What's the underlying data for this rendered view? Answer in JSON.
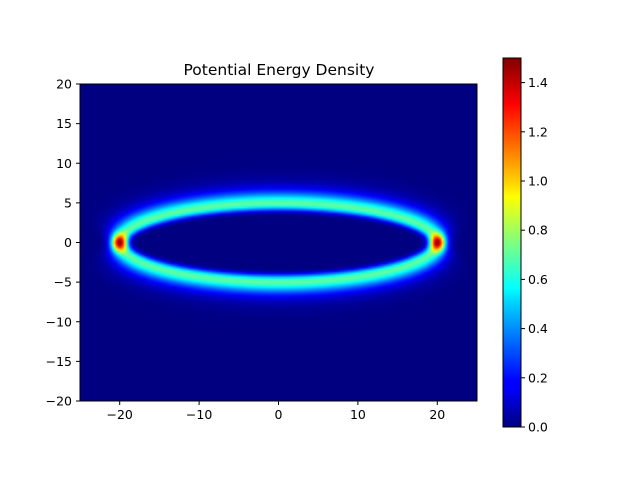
{
  "chart_data": {
    "type": "heatmap",
    "title": "Potential Energy Density",
    "xlabel": "",
    "ylabel": "",
    "xlim": [
      -25,
      25
    ],
    "ylim": [
      -20,
      20
    ],
    "x_ticks": [
      -20,
      -10,
      0,
      10,
      20
    ],
    "y_ticks": [
      -20,
      -15,
      -10,
      -5,
      0,
      5,
      10,
      15,
      20
    ],
    "x_tick_labels": [
      "−20",
      "−10",
      "0",
      "10",
      "20"
    ],
    "y_tick_labels": [
      "−20",
      "−15",
      "−10",
      "−5",
      "0",
      "5",
      "10",
      "15",
      "20"
    ],
    "colormap": "jet",
    "colorbar": {
      "range": [
        0.0,
        1.5
      ],
      "ticks": [
        0.0,
        0.2,
        0.4,
        0.6,
        0.8,
        1.0,
        1.2,
        1.4
      ],
      "tick_labels": [
        "0.0",
        "0.2",
        "0.4",
        "0.6",
        "0.8",
        "1.0",
        "1.2",
        "1.4"
      ]
    },
    "features": [
      {
        "kind": "elliptical-ring",
        "center": [
          0,
          0
        ],
        "semi_axis_x": 20,
        "semi_axis_y": 5,
        "value": 0.7
      },
      {
        "kind": "peak",
        "x": -20,
        "y": 0,
        "value": 1.5
      },
      {
        "kind": "peak",
        "x": 20,
        "y": 0,
        "value": 1.5
      }
    ],
    "background_value": 0.0,
    "grid": false,
    "colors": {
      "background": "#000080",
      "ring": "#7cff7a",
      "peak": "#800000"
    }
  }
}
